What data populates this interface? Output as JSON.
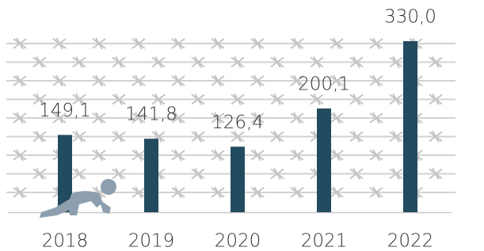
{
  "chart_data": {
    "type": "bar",
    "categories": [
      "2018",
      "2019",
      "2020",
      "2021",
      "2022"
    ],
    "values": [
      149.1,
      141.8,
      126.4,
      200.1,
      330.0
    ],
    "value_labels": [
      "149,1",
      "141,8",
      "126,4",
      "200,1",
      "330,0"
    ],
    "color": "#234b5f"
  }
}
